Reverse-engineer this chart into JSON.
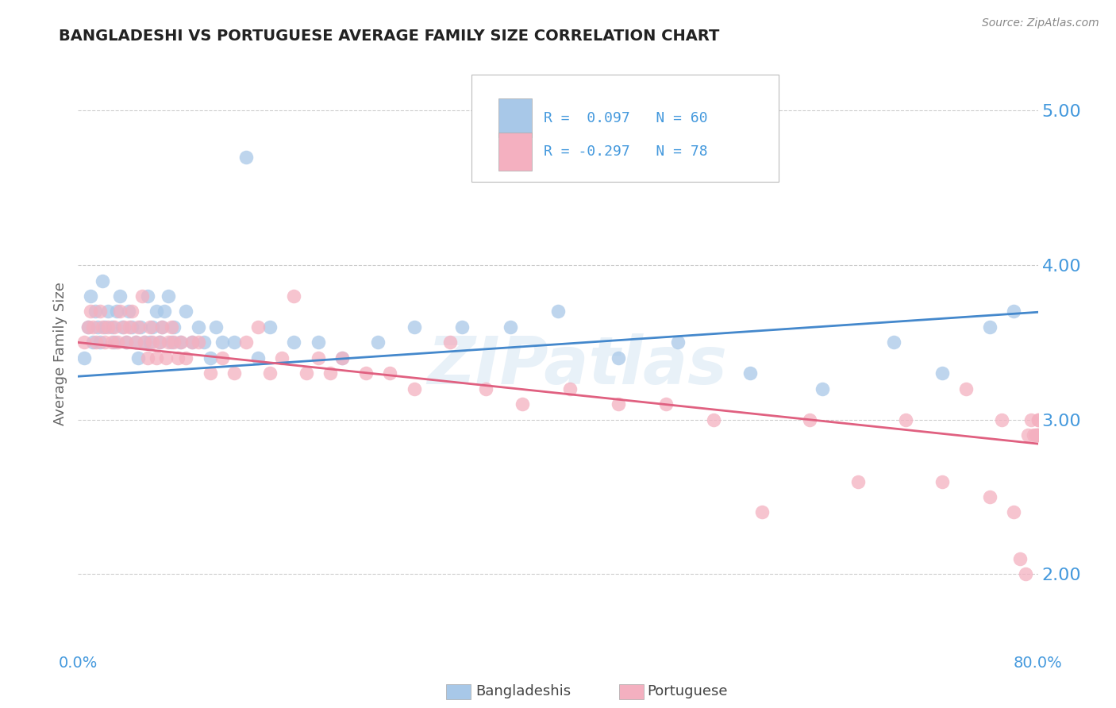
{
  "title": "BANGLADESHI VS PORTUGUESE AVERAGE FAMILY SIZE CORRELATION CHART",
  "source": "Source: ZipAtlas.com",
  "ylabel": "Average Family Size",
  "xlim": [
    0.0,
    0.8
  ],
  "ylim": [
    1.5,
    5.35
  ],
  "yticks": [
    2.0,
    3.0,
    4.0,
    5.0
  ],
  "legend_labels": [
    "Bangladeshis",
    "Portuguese"
  ],
  "blue_color": "#a8c8e8",
  "pink_color": "#f4b0c0",
  "blue_line_color": "#4488cc",
  "pink_line_color": "#e06080",
  "title_color": "#222222",
  "axis_label_color": "#4499dd",
  "grid_color": "#cccccc",
  "watermark": "ZIPatlas",
  "blue_R": 0.097,
  "blue_N": 60,
  "pink_R": -0.297,
  "pink_N": 78,
  "blue_slope": 0.52,
  "blue_intercept": 3.28,
  "pink_slope": -0.82,
  "pink_intercept": 3.5,
  "blue_x": [
    0.005,
    0.008,
    0.01,
    0.012,
    0.014,
    0.016,
    0.018,
    0.02,
    0.022,
    0.025,
    0.028,
    0.03,
    0.032,
    0.035,
    0.037,
    0.04,
    0.042,
    0.045,
    0.048,
    0.05,
    0.052,
    0.055,
    0.058,
    0.06,
    0.062,
    0.065,
    0.068,
    0.07,
    0.072,
    0.075,
    0.078,
    0.08,
    0.085,
    0.09,
    0.095,
    0.1,
    0.105,
    0.11,
    0.115,
    0.12,
    0.13,
    0.14,
    0.15,
    0.16,
    0.18,
    0.2,
    0.22,
    0.25,
    0.28,
    0.32,
    0.36,
    0.4,
    0.45,
    0.5,
    0.56,
    0.62,
    0.68,
    0.72,
    0.76,
    0.78
  ],
  "blue_y": [
    3.4,
    3.6,
    3.8,
    3.5,
    3.7,
    3.6,
    3.5,
    3.9,
    3.6,
    3.7,
    3.6,
    3.5,
    3.7,
    3.8,
    3.6,
    3.5,
    3.7,
    3.6,
    3.5,
    3.4,
    3.6,
    3.5,
    3.8,
    3.5,
    3.6,
    3.7,
    3.5,
    3.6,
    3.7,
    3.8,
    3.5,
    3.6,
    3.5,
    3.7,
    3.5,
    3.6,
    3.5,
    3.4,
    3.6,
    3.5,
    3.5,
    4.7,
    3.4,
    3.6,
    3.5,
    3.5,
    3.4,
    3.5,
    3.6,
    3.6,
    3.6,
    3.7,
    3.4,
    3.5,
    3.3,
    3.2,
    3.5,
    3.3,
    3.6,
    3.7
  ],
  "pink_x": [
    0.005,
    0.008,
    0.01,
    0.012,
    0.015,
    0.018,
    0.02,
    0.022,
    0.025,
    0.028,
    0.03,
    0.033,
    0.035,
    0.038,
    0.04,
    0.043,
    0.045,
    0.048,
    0.05,
    0.053,
    0.055,
    0.058,
    0.06,
    0.062,
    0.065,
    0.068,
    0.07,
    0.073,
    0.075,
    0.078,
    0.08,
    0.083,
    0.086,
    0.09,
    0.095,
    0.1,
    0.11,
    0.12,
    0.13,
    0.14,
    0.15,
    0.16,
    0.17,
    0.18,
    0.19,
    0.2,
    0.21,
    0.22,
    0.24,
    0.26,
    0.28,
    0.31,
    0.34,
    0.37,
    0.41,
    0.45,
    0.49,
    0.53,
    0.57,
    0.61,
    0.65,
    0.69,
    0.72,
    0.74,
    0.76,
    0.77,
    0.78,
    0.785,
    0.79,
    0.792,
    0.794,
    0.796,
    0.798,
    0.799,
    0.8,
    0.8,
    0.8,
    0.8
  ],
  "pink_y": [
    3.5,
    3.6,
    3.7,
    3.6,
    3.5,
    3.7,
    3.6,
    3.5,
    3.6,
    3.5,
    3.6,
    3.5,
    3.7,
    3.6,
    3.5,
    3.6,
    3.7,
    3.5,
    3.6,
    3.8,
    3.5,
    3.4,
    3.6,
    3.5,
    3.4,
    3.5,
    3.6,
    3.4,
    3.5,
    3.6,
    3.5,
    3.4,
    3.5,
    3.4,
    3.5,
    3.5,
    3.3,
    3.4,
    3.3,
    3.5,
    3.6,
    3.3,
    3.4,
    3.8,
    3.3,
    3.4,
    3.3,
    3.4,
    3.3,
    3.3,
    3.2,
    3.5,
    3.2,
    3.1,
    3.2,
    3.1,
    3.1,
    3.0,
    2.4,
    3.0,
    2.6,
    3.0,
    2.6,
    3.2,
    2.5,
    3.0,
    2.4,
    2.1,
    2.0,
    2.9,
    3.0,
    2.9,
    2.9,
    2.9,
    3.0,
    2.9,
    3.0,
    2.9
  ]
}
